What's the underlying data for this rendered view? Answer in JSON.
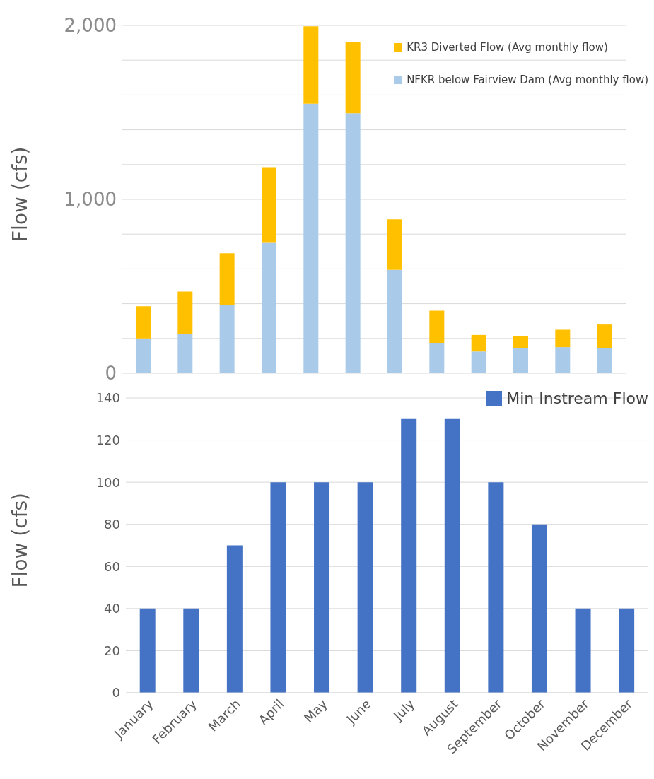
{
  "chart_data": [
    {
      "type": "bar",
      "stacked": true,
      "ylabel": "Flow (cfs)",
      "categories": [
        null,
        null,
        null,
        null,
        null,
        null,
        null,
        null,
        null,
        null,
        null,
        null
      ],
      "series": [
        {
          "name": "NFKR below Fairview Dam (Avg monthly flow)",
          "color": "#a9cbe9",
          "values": [
            200,
            225,
            390,
            750,
            1550,
            1495,
            595,
            175,
            125,
            145,
            150,
            145
          ]
        },
        {
          "name": "KR3 Diverted Flow (Avg monthly flow)",
          "color": "#ffc000",
          "values": [
            185,
            245,
            300,
            435,
            445,
            410,
            290,
            185,
            95,
            70,
            100,
            135
          ]
        }
      ],
      "ylim": [
        0,
        2000
      ],
      "yticks": [
        0,
        {
          "value": 200,
          "label": null
        },
        {
          "value": 400,
          "label": null
        },
        {
          "value": 600,
          "label": null
        },
        {
          "value": 800,
          "label": null
        },
        {
          "value": 1000,
          "label": "1,000"
        },
        {
          "value": 1200,
          "label": null
        },
        {
          "value": 1400,
          "label": null
        },
        {
          "value": 1600,
          "label": null
        },
        {
          "value": 1800,
          "label": null
        },
        {
          "value": 2000,
          "label": "2,000"
        }
      ],
      "grid": "y",
      "legend": "top right",
      "tick_labels": "y"
    },
    {
      "type": "bar",
      "ylabel": "Flow (cfs)",
      "categories": [
        "January",
        "February",
        "March",
        "April",
        "May",
        "June",
        "July",
        "August",
        "September",
        "October",
        "November",
        "December"
      ],
      "series": [
        {
          "name": "Min Instream Flow",
          "color": "#4472c4",
          "values": [
            40,
            40,
            70,
            100,
            100,
            100,
            130,
            130,
            100,
            80,
            40,
            40
          ]
        }
      ],
      "ylim": [
        0,
        140
      ],
      "yticks": [
        0,
        20,
        40,
        60,
        80,
        100,
        120,
        140
      ],
      "grid": "y",
      "legend": "top right"
    }
  ]
}
